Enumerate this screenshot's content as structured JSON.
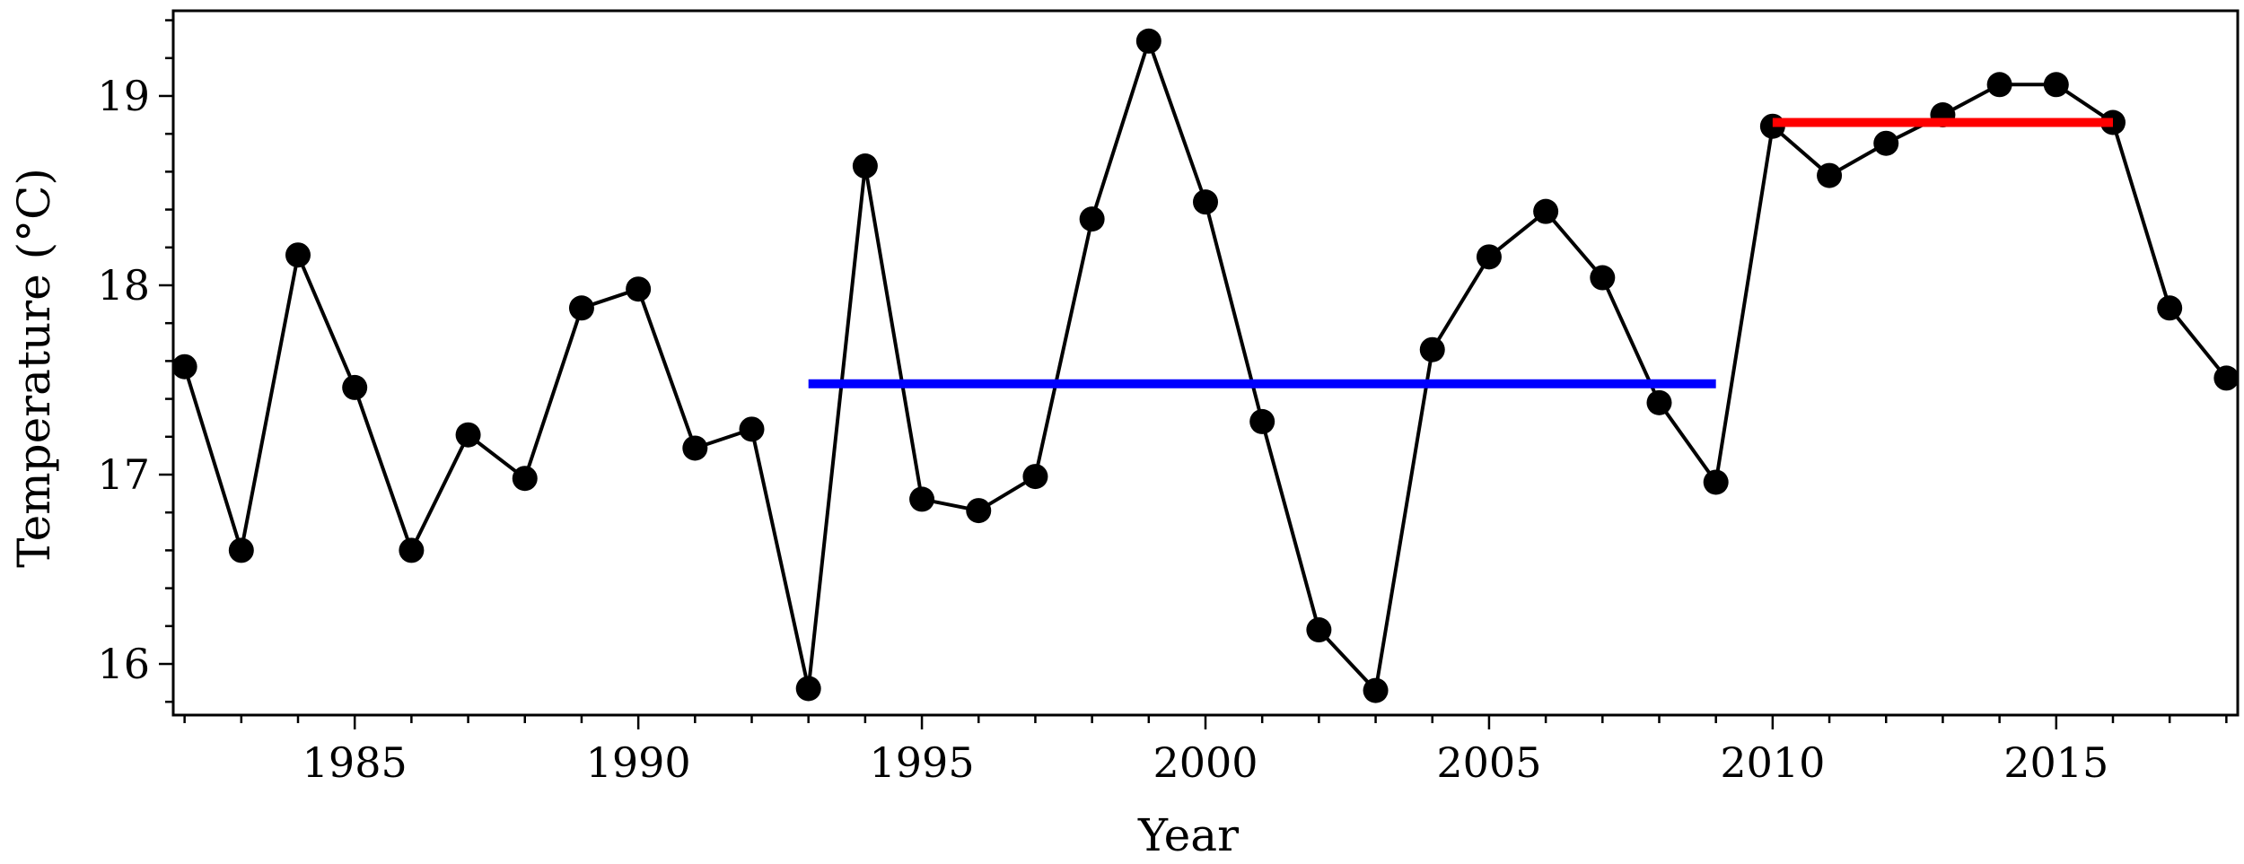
{
  "chart_data": {
    "type": "line",
    "xlabel": "Year",
    "ylabel": "Temperature (°C)",
    "xlim": [
      1981.8,
      2018.2
    ],
    "ylim": [
      15.73,
      19.45
    ],
    "x_ticks": [
      1985,
      1990,
      1995,
      2000,
      2005,
      2010,
      2015
    ],
    "y_ticks": [
      16,
      17,
      18,
      19
    ],
    "x_tick_labels": [
      "1985",
      "1990",
      "1995",
      "2000",
      "2005",
      "2010",
      "2015"
    ],
    "y_tick_labels": [
      "16",
      "17",
      "18",
      "19"
    ],
    "grid": false,
    "series": [
      {
        "color": "#000000",
        "marker": "circle",
        "x": [
          1982,
          1983,
          1984,
          1985,
          1986,
          1987,
          1988,
          1989,
          1990,
          1991,
          1992,
          1993,
          1994,
          1995,
          1996,
          1997,
          1998,
          1999,
          2000,
          2001,
          2002,
          2003,
          2004,
          2005,
          2006,
          2007,
          2008,
          2009,
          2010,
          2011,
          2012,
          2013,
          2014,
          2015,
          2016,
          2017,
          2018
        ],
        "y": [
          17.57,
          16.6,
          18.16,
          17.46,
          16.6,
          17.21,
          16.98,
          17.88,
          17.98,
          17.14,
          17.24,
          15.87,
          18.63,
          16.87,
          16.81,
          16.99,
          18.35,
          19.29,
          18.44,
          17.28,
          16.18,
          15.86,
          17.66,
          18.15,
          18.39,
          18.04,
          17.38,
          16.96,
          18.84,
          18.58,
          18.75,
          18.9,
          19.06,
          19.06,
          18.86,
          17.88,
          17.51
        ]
      }
    ],
    "reference_lines": [
      {
        "color": "#0000ff",
        "x_start": 1993,
        "x_end": 2009,
        "y": 17.48
      },
      {
        "color": "#ff0000",
        "x_start": 2010,
        "x_end": 2016,
        "y": 18.86
      }
    ]
  }
}
